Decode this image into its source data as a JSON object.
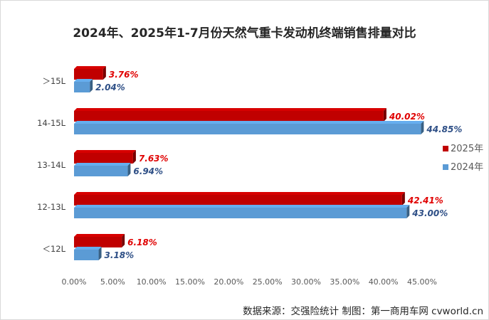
{
  "chart_data": {
    "type": "bar",
    "orientation": "horizontal",
    "title": "2024年、2025年1-7月份天然气重卡发动机终端销售排量对比",
    "categories": [
      "＞15L",
      "14-15L",
      "13-14L",
      "12-13L",
      "＜12L"
    ],
    "series": [
      {
        "name": "2025年",
        "color": "#c00000",
        "label_color": "#e00000",
        "values": [
          3.76,
          40.02,
          7.63,
          42.41,
          6.18
        ],
        "labels": [
          "3.76%",
          "40.02%",
          "7.63%",
          "42.41%",
          "6.18%"
        ]
      },
      {
        "name": "2024年",
        "color": "#5b9bd5",
        "label_color": "#2e4f86",
        "values": [
          2.04,
          44.85,
          6.94,
          43.0,
          3.18
        ],
        "labels": [
          "2.04%",
          "44.85%",
          "6.94%",
          "43.00%",
          "3.18%"
        ]
      }
    ],
    "xlim": [
      0,
      45
    ],
    "x_ticks": [
      "0.00%",
      "5.00%",
      "10.00%",
      "15.00%",
      "20.00%",
      "25.00%",
      "30.00%",
      "35.00%",
      "40.00%",
      "45.00%"
    ],
    "x_tick_values": [
      0,
      5,
      10,
      15,
      20,
      25,
      30,
      35,
      40,
      45
    ],
    "legend_position": "right",
    "bar_style": "3d",
    "grid": false
  },
  "source_note": "数据来源：交强险统计    制图：第一商用车网 cvworld.cn"
}
